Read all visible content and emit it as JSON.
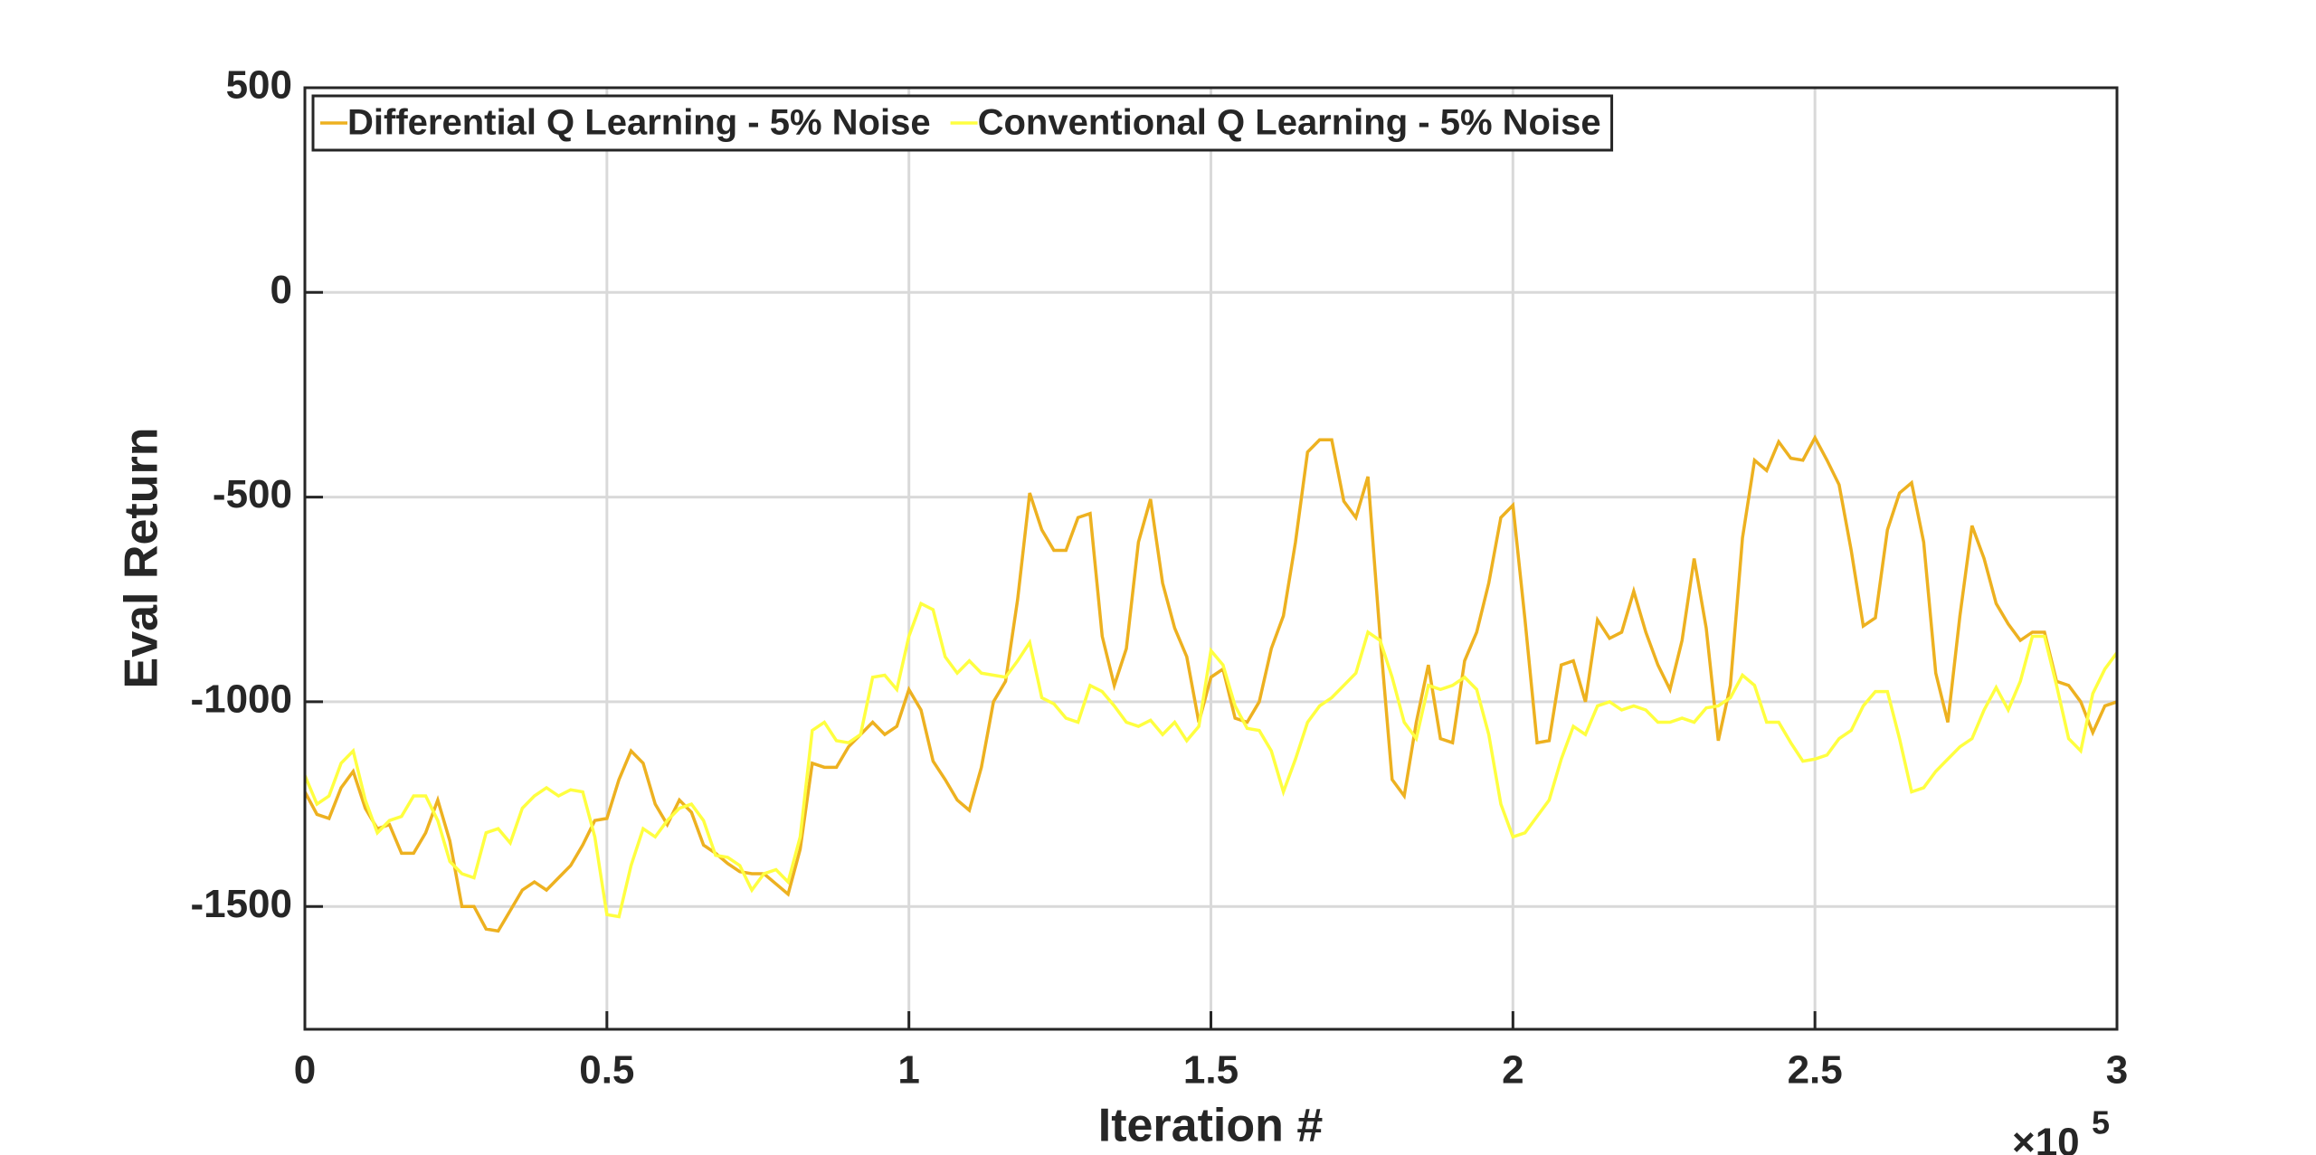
{
  "chart_data": {
    "type": "line",
    "xlabel": "Iteration #",
    "ylabel": "Eval Return",
    "x_exponent": {
      "base": "×10",
      "power": "5"
    },
    "x": [
      0,
      2000,
      4000,
      6000,
      8000,
      10000,
      12000,
      14000,
      16000,
      18000,
      20000,
      22000,
      24000,
      26000,
      28000,
      30000,
      32000,
      34000,
      36000,
      38000,
      40000,
      42000,
      44000,
      46000,
      48000,
      50000,
      52000,
      54000,
      56000,
      58000,
      60000,
      62000,
      64000,
      66000,
      68000,
      70000,
      72000,
      74000,
      76000,
      78000,
      80000,
      82000,
      84000,
      86000,
      88000,
      90000,
      92000,
      94000,
      96000,
      98000,
      100000,
      102000,
      104000,
      106000,
      108000,
      110000,
      112000,
      114000,
      116000,
      118000,
      120000,
      122000,
      124000,
      126000,
      128000,
      130000,
      132000,
      134000,
      136000,
      138000,
      140000,
      142000,
      144000,
      146000,
      148000,
      150000,
      152000,
      154000,
      156000,
      158000,
      160000,
      162000,
      164000,
      166000,
      168000,
      170000,
      172000,
      174000,
      176000,
      178000,
      180000,
      182000,
      184000,
      186000,
      188000,
      190000,
      192000,
      194000,
      196000,
      198000,
      200000,
      202000,
      204000,
      206000,
      208000,
      210000,
      212000,
      214000,
      216000,
      218000,
      220000,
      222000,
      224000,
      226000,
      228000,
      230000,
      232000,
      234000,
      236000,
      238000,
      240000,
      242000,
      244000,
      246000,
      248000,
      250000,
      252000,
      254000,
      256000,
      258000,
      260000,
      262000,
      264000,
      266000,
      268000,
      270000,
      272000,
      274000,
      276000,
      278000,
      280000,
      282000,
      284000,
      286000,
      288000,
      290000,
      292000,
      294000,
      296000,
      298000,
      300000
    ],
    "series": [
      {
        "name": "Differential Q Learning - 5% Noise",
        "color": "#edb120",
        "values": [
          -1220,
          -1275,
          -1285,
          -1210,
          -1170,
          -1260,
          -1310,
          -1300,
          -1370,
          -1370,
          -1320,
          -1240,
          -1340,
          -1500,
          -1500,
          -1555,
          -1560,
          -1510,
          -1460,
          -1440,
          -1460,
          -1430,
          -1400,
          -1350,
          -1290,
          -1285,
          -1190,
          -1120,
          -1150,
          -1250,
          -1300,
          -1240,
          -1270,
          -1350,
          -1370,
          -1395,
          -1415,
          -1420,
          -1420,
          -1445,
          -1470,
          -1360,
          -1150,
          -1160,
          -1160,
          -1110,
          -1080,
          -1050,
          -1080,
          -1060,
          -970,
          -1020,
          -1145,
          -1190,
          -1240,
          -1265,
          -1160,
          -1000,
          -950,
          -750,
          -490,
          -580,
          -630,
          -630,
          -550,
          -540,
          -840,
          -960,
          -870,
          -610,
          -505,
          -710,
          -820,
          -890,
          -1050,
          -940,
          -920,
          -1040,
          -1050,
          -1000,
          -870,
          -790,
          -610,
          -390,
          -360,
          -360,
          -510,
          -550,
          -450,
          -840,
          -1190,
          -1230,
          -1050,
          -910,
          -1090,
          -1100,
          -900,
          -830,
          -710,
          -550,
          -520,
          -800,
          -1100,
          -1095,
          -910,
          -900,
          -1000,
          -800,
          -845,
          -830,
          -730,
          -830,
          -910,
          -970,
          -850,
          -650,
          -820,
          -1095,
          -960,
          -600,
          -410,
          -435,
          -365,
          -405,
          -410,
          -355,
          -410,
          -470,
          -630,
          -815,
          -795,
          -580,
          -490,
          -465,
          -610,
          -930,
          -1050,
          -790,
          -570,
          -650,
          -760,
          -810,
          -850,
          -830,
          -830,
          -950,
          -960,
          -1000,
          -1075,
          -1010,
          -1000
        ]
      },
      {
        "name": "Conventional Q Learning - 5% Noise",
        "color": "#ffff40",
        "values": [
          -1180,
          -1250,
          -1230,
          -1150,
          -1120,
          -1240,
          -1320,
          -1290,
          -1280,
          -1230,
          -1230,
          -1290,
          -1390,
          -1420,
          -1430,
          -1320,
          -1310,
          -1345,
          -1260,
          -1230,
          -1210,
          -1230,
          -1215,
          -1220,
          -1330,
          -1520,
          -1525,
          -1400,
          -1310,
          -1330,
          -1290,
          -1260,
          -1250,
          -1290,
          -1375,
          -1380,
          -1400,
          -1460,
          -1420,
          -1410,
          -1440,
          -1330,
          -1070,
          -1050,
          -1095,
          -1100,
          -1080,
          -940,
          -935,
          -970,
          -840,
          -760,
          -775,
          -890,
          -930,
          -900,
          -930,
          -935,
          -940,
          -900,
          -855,
          -990,
          -1005,
          -1040,
          -1050,
          -960,
          -975,
          -1010,
          -1050,
          -1060,
          -1045,
          -1080,
          -1050,
          -1095,
          -1060,
          -875,
          -910,
          -1010,
          -1065,
          -1070,
          -1120,
          -1220,
          -1140,
          -1050,
          -1010,
          -990,
          -960,
          -930,
          -830,
          -850,
          -940,
          -1050,
          -1090,
          -960,
          -970,
          -960,
          -940,
          -970,
          -1080,
          -1250,
          -1330,
          -1320,
          -1280,
          -1240,
          -1140,
          -1060,
          -1080,
          -1010,
          -1000,
          -1020,
          -1010,
          -1020,
          -1050,
          -1050,
          -1040,
          -1050,
          -1015,
          -1010,
          -990,
          -935,
          -960,
          -1050,
          -1050,
          -1100,
          -1145,
          -1140,
          -1130,
          -1090,
          -1070,
          -1010,
          -975,
          -975,
          -1090,
          -1220,
          -1210,
          -1170,
          -1140,
          -1110,
          -1090,
          -1020,
          -965,
          -1020,
          -950,
          -840,
          -840,
          -960,
          -1090,
          -1120,
          -980,
          -920,
          -880
        ]
      }
    ],
    "xlim": [
      0,
      300000
    ],
    "xticks": [
      0,
      {
        "value": 50000,
        "label": "0.5"
      },
      {
        "value": 100000,
        "label": "1"
      },
      {
        "value": 150000,
        "label": "1.5"
      },
      {
        "value": 200000,
        "label": "2"
      },
      {
        "value": 250000,
        "label": "2.5"
      },
      {
        "value": 300000,
        "label": "3"
      }
    ],
    "ylim": [
      -1800,
      500
    ],
    "yticks": [
      -1500,
      -1000,
      -500,
      0,
      500
    ],
    "grid": true,
    "legend": "top-left"
  }
}
